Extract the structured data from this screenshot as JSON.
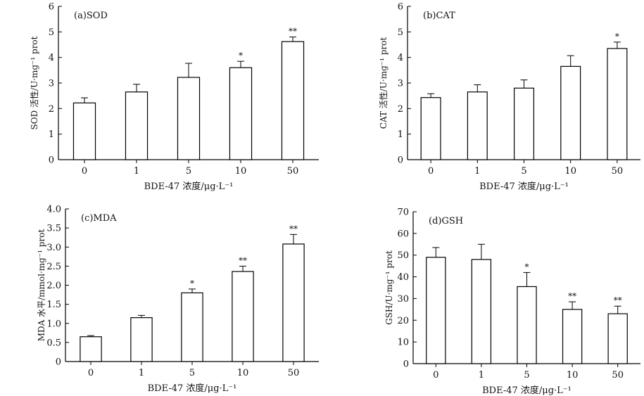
{
  "chart_data": [
    {
      "type": "bar",
      "title": "(a)SOD",
      "xlabel": "BDE-47 浓度/μg·L⁻¹",
      "ylabel": "SOD 活性/U·mg⁻¹ prot",
      "categories": [
        "0",
        "1",
        "5",
        "10",
        "50"
      ],
      "values": [
        2.22,
        2.65,
        3.22,
        3.6,
        4.62
      ],
      "errors": [
        0.2,
        0.3,
        0.55,
        0.25,
        0.18
      ],
      "significance": [
        "",
        "",
        "",
        "*",
        "**"
      ],
      "ylim": [
        0,
        6
      ],
      "yticks": [
        "0",
        "1",
        "2",
        "3",
        "4",
        "5",
        "6"
      ]
    },
    {
      "type": "bar",
      "title": "(b)CAT",
      "xlabel": "BDE-47 浓度/μg·L⁻¹",
      "ylabel": "CAT 活性/U·mg⁻¹ prot",
      "categories": [
        "0",
        "1",
        "5",
        "10",
        "50"
      ],
      "values": [
        2.43,
        2.65,
        2.8,
        3.65,
        4.35
      ],
      "errors": [
        0.15,
        0.28,
        0.32,
        0.42,
        0.25
      ],
      "significance": [
        "",
        "",
        "",
        "",
        "*"
      ],
      "ylim": [
        0,
        6
      ],
      "yticks": [
        "0",
        "1",
        "2",
        "3",
        "4",
        "5",
        "6"
      ]
    },
    {
      "type": "bar",
      "title": "(c)MDA",
      "xlabel": "BDE-47 浓度/μg·L⁻¹",
      "ylabel": "MDA 水平/mmol·mg⁻¹ prot",
      "categories": [
        "0",
        "1",
        "5",
        "10",
        "50"
      ],
      "values": [
        0.65,
        1.15,
        1.8,
        2.36,
        3.08
      ],
      "errors": [
        0.03,
        0.06,
        0.1,
        0.14,
        0.25
      ],
      "significance": [
        "",
        "",
        "*",
        "**",
        "**"
      ],
      "ylim": [
        0,
        4
      ],
      "yticks": [
        "0",
        "0.5",
        "1.0",
        "1.5",
        "2.0",
        "2.5",
        "3.0",
        "3.5",
        "4.0"
      ]
    },
    {
      "type": "bar",
      "title": "(d)GSH",
      "xlabel": "BDE-47 浓度/μg·L⁻¹",
      "ylabel": "GSH/U·mg⁻¹ prot",
      "categories": [
        "0",
        "1",
        "5",
        "10",
        "50"
      ],
      "values": [
        49,
        48,
        35.5,
        25,
        23
      ],
      "errors": [
        4.5,
        7,
        6.5,
        3.5,
        3.5
      ],
      "significance": [
        "",
        "",
        "*",
        "**",
        "**"
      ],
      "ylim": [
        0,
        70
      ],
      "yticks": [
        "0",
        "10",
        "20",
        "30",
        "40",
        "50",
        "60",
        "70"
      ]
    }
  ]
}
